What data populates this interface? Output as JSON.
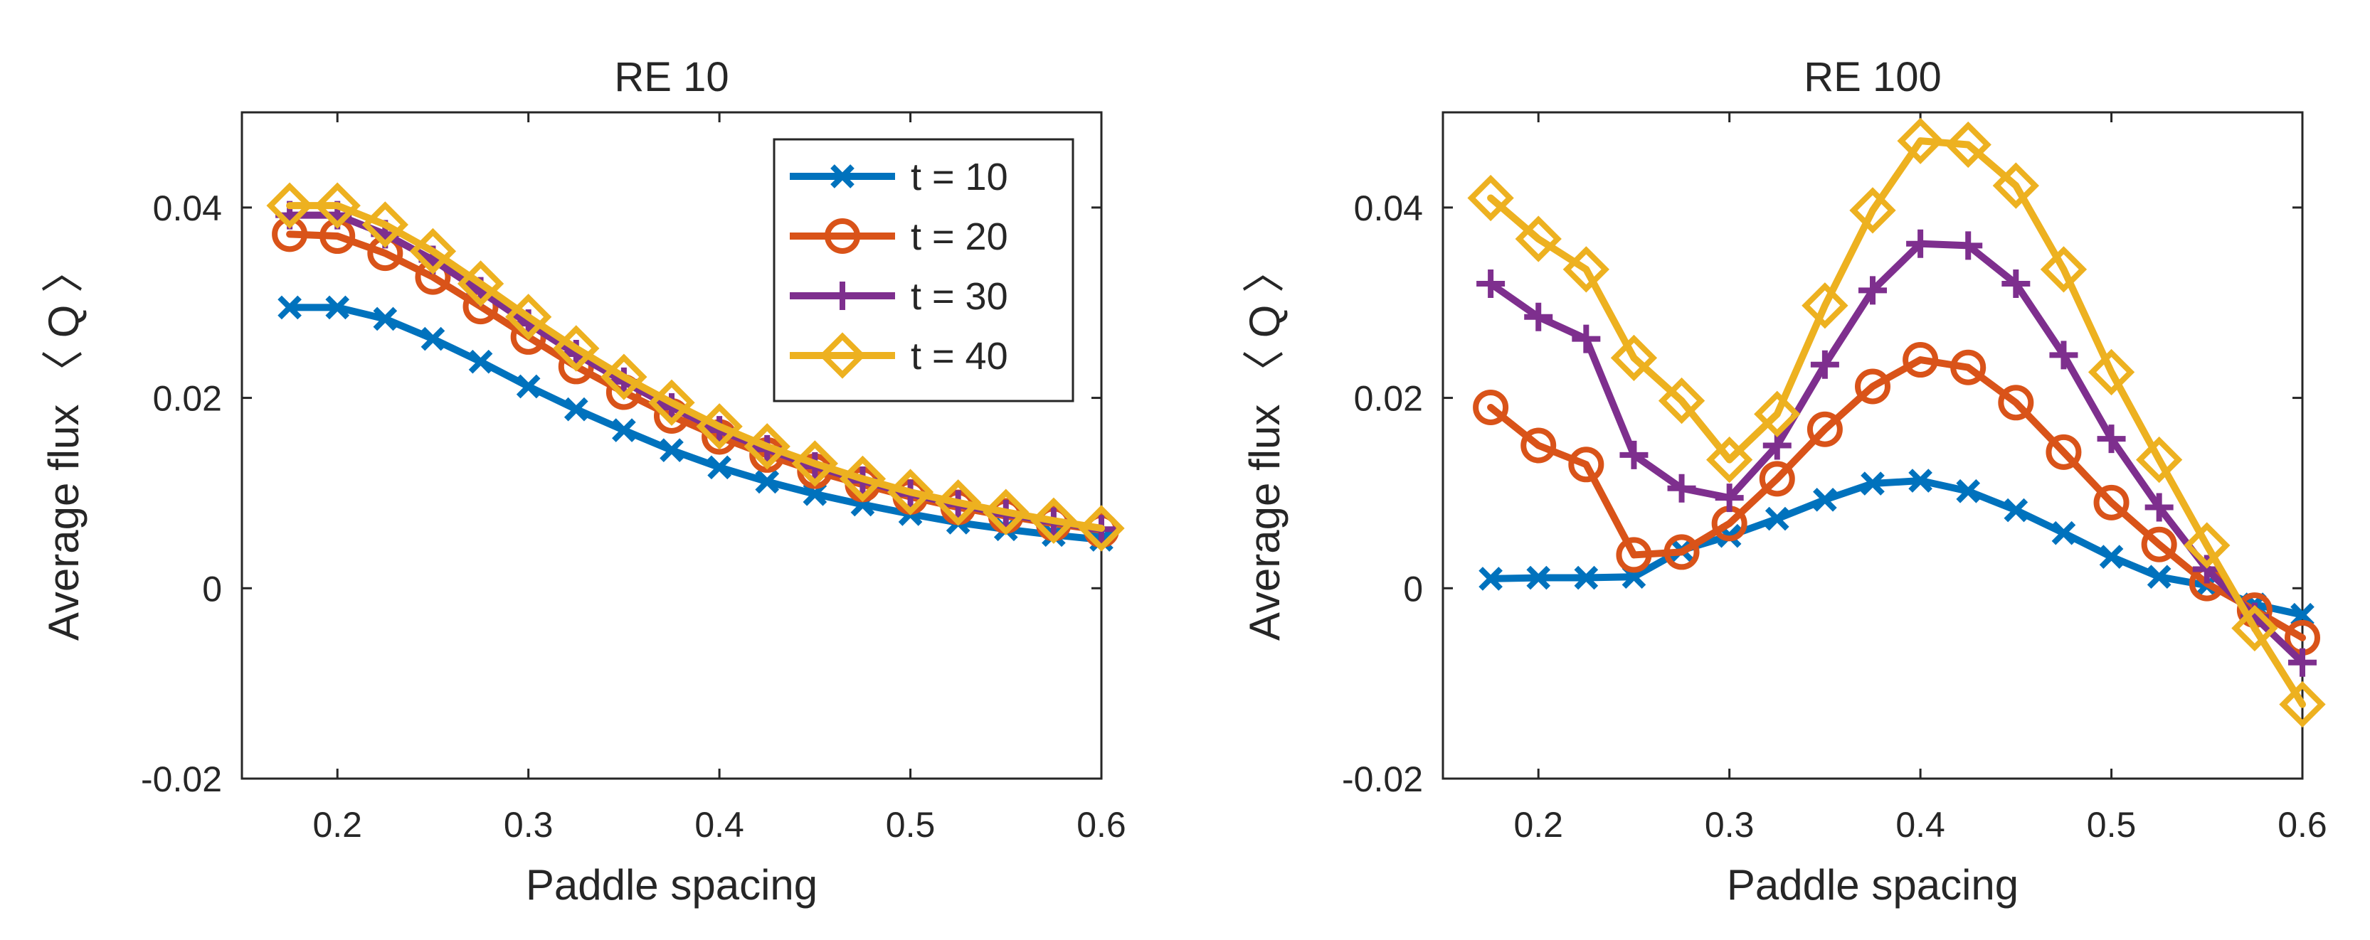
{
  "chart_data": [
    {
      "type": "line",
      "title": "RE 10",
      "xlabel": "Paddle spacing",
      "ylabel": "Average flux 〈 Q 〉",
      "xlim": [
        0.15,
        0.6
      ],
      "ylim": [
        -0.02,
        0.05
      ],
      "xticks": [
        0.2,
        0.3,
        0.4,
        0.5,
        0.6
      ],
      "xtick_labels": [
        "0.2",
        "0.3",
        "0.4",
        "0.5",
        "0.6"
      ],
      "yticks": [
        -0.02,
        0,
        0.02,
        0.04
      ],
      "ytick_labels": [
        "-0.02",
        "0",
        "0.02",
        "0.04"
      ],
      "grid": false,
      "legend": "top-right",
      "x": [
        0.175,
        0.2,
        0.225,
        0.25,
        0.275,
        0.3,
        0.325,
        0.35,
        0.375,
        0.4,
        0.425,
        0.45,
        0.475,
        0.5,
        0.525,
        0.55,
        0.575,
        0.6
      ],
      "series": [
        {
          "name": "t = 10",
          "color": "#0072BD",
          "marker": "x",
          "values": [
            0.0295,
            0.0295,
            0.0283,
            0.0262,
            0.0238,
            0.0212,
            0.0188,
            0.0166,
            0.0145,
            0.0127,
            0.0112,
            0.0099,
            0.0088,
            0.0078,
            0.0069,
            0.0062,
            0.0056,
            0.0051
          ]
        },
        {
          "name": "t = 20",
          "color": "#D95319",
          "marker": "o",
          "values": [
            0.0372,
            0.037,
            0.0352,
            0.0327,
            0.0296,
            0.0264,
            0.0233,
            0.0206,
            0.0181,
            0.0159,
            0.014,
            0.0123,
            0.0109,
            0.0096,
            0.0085,
            0.0076,
            0.0068,
            0.0061
          ]
        },
        {
          "name": "t = 30",
          "color": "#7E2F8E",
          "marker": "+",
          "values": [
            0.0392,
            0.0392,
            0.0372,
            0.0345,
            0.0312,
            0.0278,
            0.0246,
            0.0217,
            0.019,
            0.0166,
            0.0146,
            0.0128,
            0.0113,
            0.0099,
            0.0088,
            0.0078,
            0.007,
            0.0062
          ]
        },
        {
          "name": "t = 40",
          "color": "#EDB120",
          "marker": "diamond",
          "values": [
            0.0402,
            0.0402,
            0.0382,
            0.0354,
            0.032,
            0.0285,
            0.0252,
            0.0222,
            0.0195,
            0.017,
            0.0149,
            0.0131,
            0.0115,
            0.0101,
            0.009,
            0.008,
            0.0071,
            0.0063
          ]
        }
      ]
    },
    {
      "type": "line",
      "title": "RE 100",
      "xlabel": "Paddle spacing",
      "ylabel": "Average flux 〈 Q 〉",
      "xlim": [
        0.15,
        0.6
      ],
      "ylim": [
        -0.02,
        0.05
      ],
      "xticks": [
        0.2,
        0.3,
        0.4,
        0.5,
        0.6
      ],
      "xtick_labels": [
        "0.2",
        "0.3",
        "0.4",
        "0.5",
        "0.6"
      ],
      "yticks": [
        -0.02,
        0,
        0.02,
        0.04
      ],
      "ytick_labels": [
        "-0.02",
        "0",
        "0.02",
        "0.04"
      ],
      "grid": false,
      "legend": "none",
      "x": [
        0.175,
        0.2,
        0.225,
        0.25,
        0.275,
        0.3,
        0.325,
        0.35,
        0.375,
        0.4,
        0.425,
        0.45,
        0.475,
        0.5,
        0.525,
        0.55,
        0.575,
        0.6
      ],
      "series": [
        {
          "name": "t = 10",
          "color": "#0072BD",
          "marker": "x",
          "values": [
            0.001,
            0.0011,
            0.0011,
            0.0012,
            0.004,
            0.0055,
            0.0073,
            0.0093,
            0.011,
            0.0113,
            0.0102,
            0.0082,
            0.0058,
            0.0033,
            0.0012,
            0.0003,
            -0.0017,
            -0.0028
          ]
        },
        {
          "name": "t = 20",
          "color": "#D95319",
          "marker": "o",
          "values": [
            0.019,
            0.015,
            0.013,
            0.0035,
            0.0038,
            0.0068,
            0.0115,
            0.0167,
            0.0212,
            0.024,
            0.0232,
            0.0195,
            0.0143,
            0.009,
            0.0046,
            0.0005,
            -0.0023,
            -0.0052
          ]
        },
        {
          "name": "t = 30",
          "color": "#7E2F8E",
          "marker": "+",
          "values": [
            0.032,
            0.0285,
            0.0262,
            0.014,
            0.0105,
            0.0095,
            0.015,
            0.0235,
            0.0313,
            0.0362,
            0.036,
            0.032,
            0.0245,
            0.0157,
            0.0085,
            0.002,
            -0.003,
            -0.0078
          ]
        },
        {
          "name": "t = 40",
          "color": "#EDB120",
          "marker": "diamond",
          "values": [
            0.041,
            0.0367,
            0.0335,
            0.0242,
            0.0197,
            0.0135,
            0.0183,
            0.0297,
            0.0397,
            0.047,
            0.0466,
            0.0423,
            0.0335,
            0.0227,
            0.0135,
            0.0045,
            -0.0042,
            -0.0122
          ]
        }
      ]
    }
  ]
}
